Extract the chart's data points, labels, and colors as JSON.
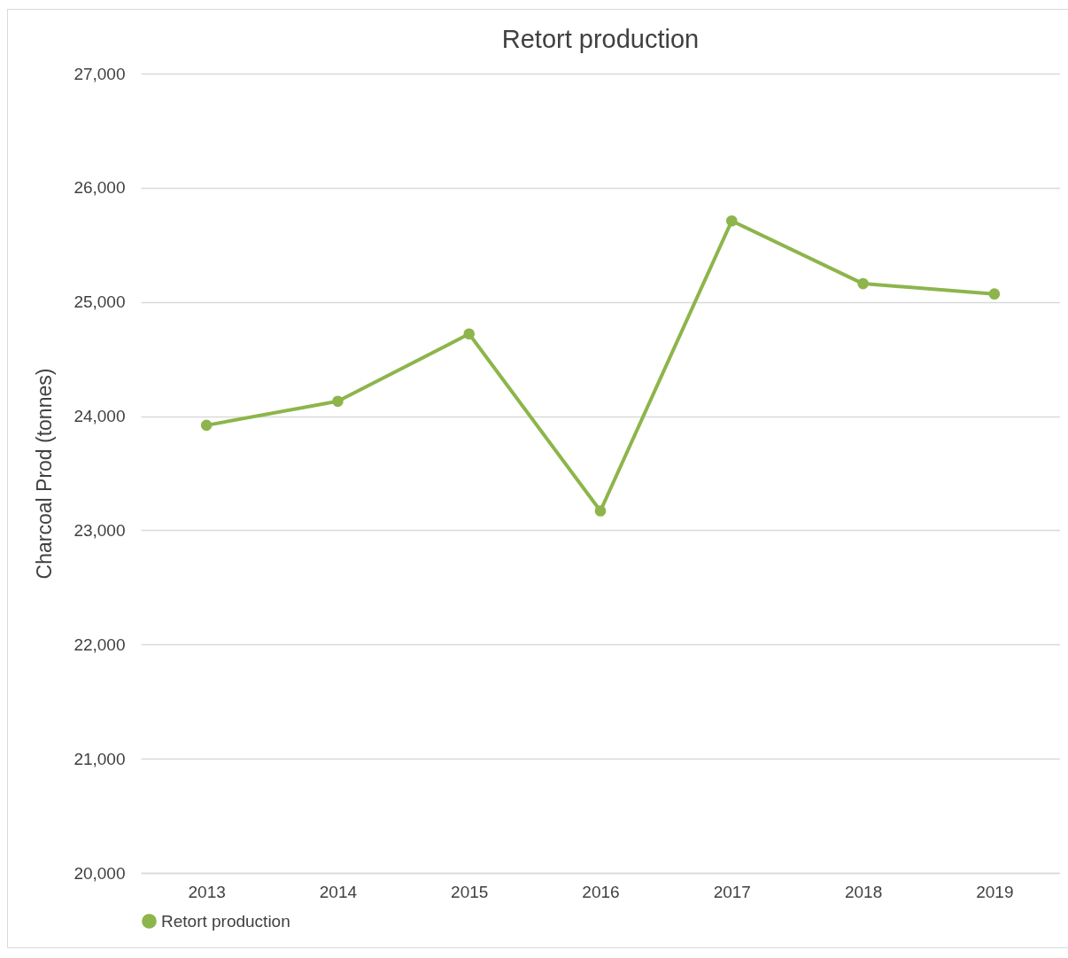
{
  "chart_data": {
    "type": "line",
    "title": "Retort production",
    "ylabel": "Charcoal Prod (tonnes)",
    "categories": [
      "2013",
      "2014",
      "2015",
      "2016",
      "2017",
      "2018",
      "2019"
    ],
    "series": [
      {
        "name": "Retort production",
        "color": "#8db54b",
        "values": [
          23920,
          24130,
          24720,
          23170,
          25710,
          25160,
          25070
        ]
      }
    ],
    "ylim": [
      20000,
      27000
    ],
    "yticks": [
      {
        "value": 20000,
        "label": "20,000"
      },
      {
        "value": 21000,
        "label": "21,000"
      },
      {
        "value": 22000,
        "label": "22,000"
      },
      {
        "value": 23000,
        "label": "23,000"
      },
      {
        "value": 24000,
        "label": "24,000"
      },
      {
        "value": 25000,
        "label": "25,000"
      },
      {
        "value": 26000,
        "label": "26,000"
      },
      {
        "value": 27000,
        "label": "27,000"
      }
    ],
    "grid": "y",
    "legend": "bottom",
    "marker": "circle",
    "line_style": "solid"
  }
}
